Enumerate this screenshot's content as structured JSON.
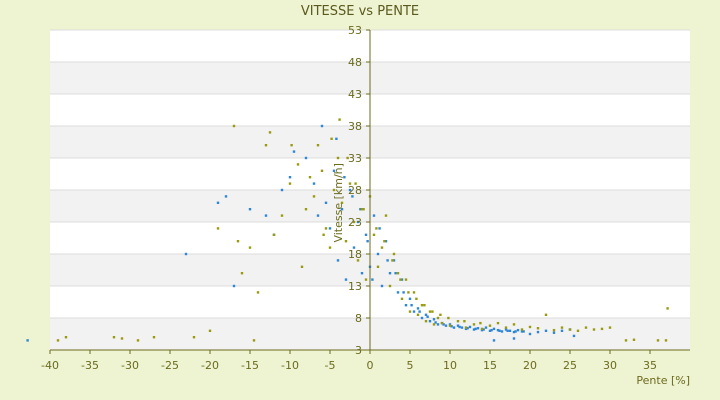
{
  "chart_data": {
    "type": "scatter",
    "title": "VITESSE vs PENTE",
    "xlabel": "Pente [%]",
    "ylabel": "Vitesse [km/h]",
    "xlim": [
      -40,
      40
    ],
    "ylim": [
      3,
      53
    ],
    "x_ticks": [
      -40,
      -35,
      -30,
      -25,
      -20,
      -15,
      -10,
      -5,
      0,
      5,
      10,
      15,
      20,
      25,
      30,
      35
    ],
    "y_ticks": [
      3,
      8,
      13,
      18,
      23,
      28,
      33,
      38,
      43,
      48,
      53
    ],
    "grid": true,
    "legend": "none",
    "colors": {
      "blue": "#2e86d6",
      "olive": "#9a9a10",
      "band": "#f2f2f2",
      "plot_bg": "#ffffff",
      "axis": "#6b6b1e"
    },
    "series": [
      {
        "color": "blue",
        "x": [
          -42.8,
          -23,
          -17,
          -9.5,
          -7,
          -6,
          -5.5,
          -5,
          -4.5,
          -4,
          -3.5,
          -3,
          -2.5,
          -2,
          -1.5,
          -1,
          -0.5,
          0,
          0.5,
          1,
          1.5,
          2,
          2.5,
          3,
          3.5,
          4,
          4.5,
          5,
          5.5,
          6,
          6.5,
          7,
          7.5,
          8,
          8.5,
          9,
          9.5,
          10,
          10.5,
          11,
          11.5,
          12,
          12.5,
          13,
          13.5,
          14,
          14.5,
          15,
          15.5,
          16,
          16.5,
          17,
          17.5,
          18,
          18.5,
          19,
          20,
          21,
          22,
          23,
          24,
          25,
          -19,
          -18,
          -15,
          -13,
          -12,
          -11,
          -10,
          -8,
          -6.5,
          -4.2,
          -3.2,
          -2.2,
          -1.2,
          -0.3,
          0.3,
          1.2,
          2.2,
          3.2,
          4.2,
          5.2,
          6.2,
          7.2,
          8.2,
          9.2,
          10.2,
          11.2,
          12.2,
          13.2,
          14.2,
          15.2,
          16.2,
          17.2,
          18.2,
          19.2,
          25.5,
          18,
          15.5
        ],
        "y": [
          4.5,
          18,
          13,
          34,
          29,
          38,
          26,
          22,
          31,
          17,
          25,
          14,
          28,
          19,
          23,
          15,
          21,
          16,
          24,
          18,
          13,
          20,
          15,
          17,
          12,
          14,
          10,
          11,
          9,
          9.5,
          8,
          8.5,
          7.5,
          7.8,
          7,
          7.2,
          6.8,
          7,
          6.5,
          6.8,
          6.5,
          6.3,
          6.6,
          6.2,
          6.4,
          6.1,
          6.5,
          6,
          6.3,
          6.1,
          5.9,
          6.2,
          6,
          5.8,
          6.1,
          5.9,
          5.5,
          5.8,
          6,
          5.7,
          6,
          6.2,
          26,
          27,
          25,
          24,
          21,
          28,
          30,
          33,
          24,
          36,
          30,
          27,
          25,
          20,
          14,
          22,
          17,
          15,
          12,
          10,
          9,
          8.2,
          7.3,
          7,
          6.7,
          6.6,
          6.4,
          6.3,
          6.2,
          6.1,
          6,
          6,
          5.9,
          5.9,
          5.2,
          4.8,
          4.5
        ]
      },
      {
        "color": "olive",
        "x": [
          -39,
          -38,
          -32,
          -31,
          -29,
          -27,
          -22,
          -20,
          -19,
          -17,
          -16,
          -15,
          -14.5,
          -14,
          -13,
          -12,
          -11,
          -10,
          -9,
          -8.5,
          -8,
          -7.5,
          -7,
          -6.5,
          -6,
          -5.5,
          -5,
          -4.5,
          -4,
          -3.5,
          -3,
          -2.5,
          -2,
          -1.5,
          -1,
          -0.5,
          0,
          0.5,
          1,
          1.5,
          2,
          2.5,
          3,
          3.5,
          4,
          4.5,
          5,
          5.5,
          6,
          6.5,
          7,
          7.5,
          8,
          8.5,
          9,
          10,
          11,
          12,
          13,
          14,
          15,
          16,
          17,
          18,
          19,
          20,
          21,
          22,
          23,
          24,
          25,
          26,
          27,
          28,
          29,
          30,
          32,
          33,
          36,
          37,
          -16.5,
          -12.5,
          -9.8,
          -5.8,
          -4.8,
          -3.8,
          -2.8,
          -1.8,
          -0.8,
          0.8,
          1.8,
          2.8,
          3.8,
          4.8,
          5.8,
          6.8,
          7.8,
          8.8,
          9.8,
          11.8,
          13.8,
          37.2
        ],
        "y": [
          4.5,
          5,
          5,
          4.8,
          4.5,
          5,
          5,
          6,
          22,
          38,
          15,
          19,
          4.5,
          12,
          35,
          21,
          24,
          29,
          32,
          16,
          25,
          30,
          27,
          35,
          31,
          22,
          19,
          28,
          33,
          26,
          20,
          29,
          23,
          17,
          25,
          14,
          27,
          21,
          16,
          19,
          24,
          13,
          18,
          15,
          11,
          14,
          9,
          12,
          8.5,
          10,
          7.5,
          9,
          7,
          8,
          7.2,
          6.8,
          7.5,
          6.5,
          7,
          6.3,
          6.8,
          7.2,
          6.5,
          7,
          6.2,
          6.6,
          6.4,
          8.5,
          6.1,
          6.5,
          6.2,
          6,
          6.5,
          6.2,
          6.3,
          6.5,
          4.5,
          4.6,
          4.5,
          4.5,
          20,
          37,
          35,
          21,
          36,
          39,
          33,
          29,
          25,
          22,
          20,
          17,
          14,
          12,
          11,
          10,
          9,
          8.5,
          8,
          7.5,
          7.2,
          9.5
        ]
      }
    ]
  }
}
